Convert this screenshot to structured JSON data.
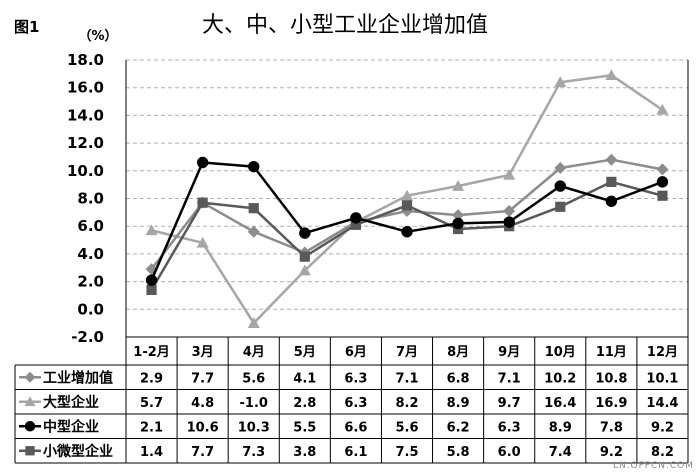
{
  "figure_label": "图1",
  "unit_label": "（%）",
  "watermark": "LN.OFFCN.COM",
  "colors": {
    "industry": "#8c8c8c",
    "large": "#a6a6a6",
    "medium": "#000000",
    "small": "#595959",
    "grid": "#b0b0b0",
    "border": "#000000"
  },
  "chart_data": {
    "type": "line",
    "title": "大、中、小型工业企业增加值",
    "ylim": [
      -2.0,
      18.0
    ],
    "yticks": [
      "18.0",
      "16.0",
      "14.0",
      "12.0",
      "10.0",
      "8.0",
      "6.0",
      "4.0",
      "2.0",
      "0.0",
      "-2.0"
    ],
    "ytick_values": [
      18,
      16,
      14,
      12,
      10,
      8,
      6,
      4,
      2,
      0,
      -2
    ],
    "grid": "horizontal dashed",
    "legend": "data table below chart",
    "categories": [
      "1-2月",
      "3月",
      "4月",
      "5月",
      "6月",
      "7月",
      "8月",
      "9月",
      "10月",
      "11月",
      "12月"
    ],
    "series": [
      {
        "name": "工业增加值",
        "marker": "diamond",
        "color_key": "industry",
        "values": [
          2.9,
          7.7,
          5.6,
          4.1,
          6.3,
          7.1,
          6.8,
          7.1,
          10.2,
          10.8,
          10.1
        ],
        "labels": [
          "2.9",
          "7.7",
          "5.6",
          "4.1",
          "6.3",
          "7.1",
          "6.8",
          "7.1",
          "10.2",
          "10.8",
          "10.1"
        ]
      },
      {
        "name": "大型企业",
        "marker": "triangle",
        "color_key": "large",
        "values": [
          5.7,
          4.8,
          -1.0,
          2.8,
          6.3,
          8.2,
          8.9,
          9.7,
          16.4,
          16.9,
          14.4
        ],
        "labels": [
          "5.7",
          "4.8",
          "-1.0",
          "2.8",
          "6.3",
          "8.2",
          "8.9",
          "9.7",
          "16.4",
          "16.9",
          "14.4"
        ]
      },
      {
        "name": "中型企业",
        "marker": "circle",
        "color_key": "medium",
        "values": [
          2.1,
          10.6,
          10.3,
          5.5,
          6.6,
          5.6,
          6.2,
          6.3,
          8.9,
          7.8,
          9.2
        ],
        "labels": [
          "2.1",
          "10.6",
          "10.3",
          "5.5",
          "6.6",
          "5.6",
          "6.2",
          "6.3",
          "8.9",
          "7.8",
          "9.2"
        ]
      },
      {
        "name": "小微型企业",
        "marker": "square",
        "color_key": "small",
        "values": [
          1.4,
          7.7,
          7.3,
          3.8,
          6.1,
          7.5,
          5.8,
          6.0,
          7.4,
          9.2,
          8.2
        ],
        "labels": [
          "1.4",
          "7.7",
          "7.3",
          "3.8",
          "6.1",
          "7.5",
          "5.8",
          "6.0",
          "7.4",
          "9.2",
          "8.2"
        ]
      }
    ]
  }
}
